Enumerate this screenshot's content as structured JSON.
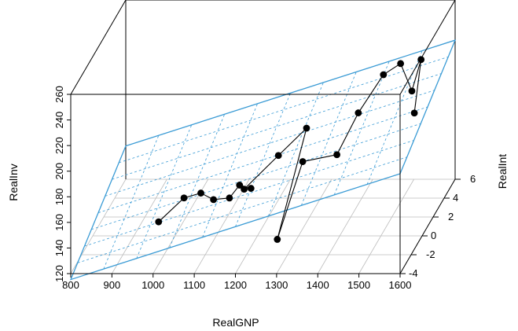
{
  "chart_data": {
    "type": "scatter",
    "kind": "3d-scatter-with-regression-plane",
    "xlabel": "RealGNP",
    "ylabel": "RealInt",
    "zlabel": "RealInv",
    "xlim": [
      800,
      1600
    ],
    "ylim": [
      -4,
      6
    ],
    "zlim": [
      120,
      260
    ],
    "x_ticks": [
      800,
      900,
      1000,
      1100,
      1200,
      1300,
      1400,
      1500,
      1600
    ],
    "y_ticks": [
      -4,
      -2,
      0,
      2,
      4,
      6
    ],
    "z_ticks": [
      120,
      140,
      160,
      180,
      200,
      220,
      240,
      260
    ],
    "plane_color": "#3a9bd5",
    "point_color": "#000000",
    "grid": true,
    "points": [
      {
        "x": 980,
        "y": -1.5,
        "z": 142
      },
      {
        "x": 1035,
        "y": -1.0,
        "z": 157
      },
      {
        "x": 1080,
        "y": -1.3,
        "z": 163
      },
      {
        "x": 1100,
        "y": -0.5,
        "z": 152
      },
      {
        "x": 1140,
        "y": -0.6,
        "z": 154
      },
      {
        "x": 1165,
        "y": 0.2,
        "z": 155
      },
      {
        "x": 1170,
        "y": -1.0,
        "z": 167
      },
      {
        "x": 1195,
        "y": -0.8,
        "z": 163
      },
      {
        "x": 1255,
        "y": -0.3,
        "z": 185
      },
      {
        "x": 1275,
        "y": -2.0,
        "z": 132
      },
      {
        "x": 1310,
        "y": 0.0,
        "z": 178
      },
      {
        "x": 1330,
        "y": -0.8,
        "z": 210
      },
      {
        "x": 1385,
        "y": 0.6,
        "z": 179
      },
      {
        "x": 1425,
        "y": 1.5,
        "z": 205
      },
      {
        "x": 1470,
        "y": 2.7,
        "z": 226
      },
      {
        "x": 1505,
        "y": 3.2,
        "z": 231
      },
      {
        "x": 1515,
        "y": 4.5,
        "z": 200
      },
      {
        "x": 1525,
        "y": 4.2,
        "z": 185
      },
      {
        "x": 1540,
        "y": 4.3,
        "z": 226
      }
    ],
    "path_order": [
      0,
      1,
      2,
      3,
      4,
      6,
      7,
      5,
      8,
      11,
      9,
      10,
      12,
      13,
      14,
      15,
      16,
      18,
      17
    ]
  }
}
